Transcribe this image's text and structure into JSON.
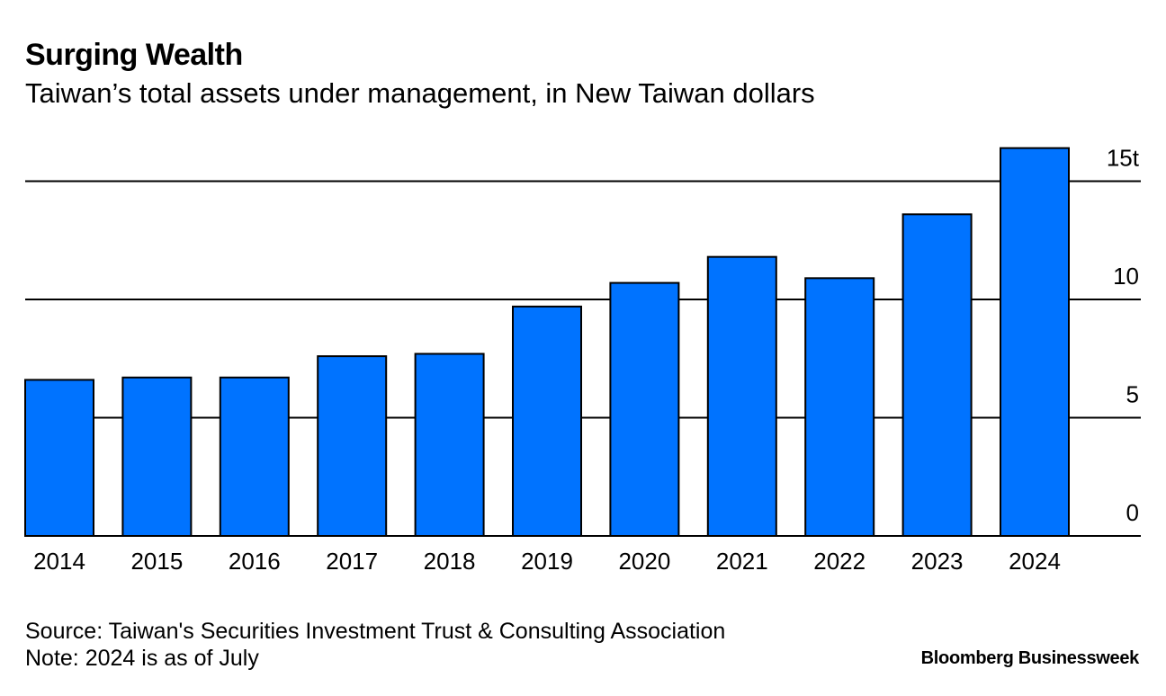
{
  "header": {
    "title": "Surging Wealth",
    "subtitle": "Taiwan’s total assets under management, in New Taiwan dollars"
  },
  "footer": {
    "source": "Source: Taiwan's Securities Investment Trust & Consulting Association",
    "note": "Note: 2024 is as of July",
    "brand": "Bloomberg Businessweek"
  },
  "colors": {
    "bar": "#0073ff",
    "bar_outline": "#000000",
    "gridline": "#000000",
    "text": "#000000"
  },
  "chart_data": {
    "type": "bar",
    "title": "Surging Wealth",
    "subtitle": "Taiwan’s total assets under management, in New Taiwan dollars",
    "xlabel": "",
    "ylabel": "",
    "categories": [
      "2014",
      "2015",
      "2016",
      "2017",
      "2018",
      "2019",
      "2020",
      "2021",
      "2022",
      "2023",
      "2024"
    ],
    "values": [
      6.6,
      6.7,
      6.7,
      7.6,
      7.7,
      9.7,
      10.7,
      11.8,
      10.9,
      13.6,
      16.4
    ],
    "ylim": [
      0,
      16.5
    ],
    "yticks": [
      0,
      5,
      10,
      15
    ],
    "ytick_labels": [
      "0",
      "5",
      "10",
      "15t"
    ],
    "grid": true,
    "axis_side": "right"
  }
}
